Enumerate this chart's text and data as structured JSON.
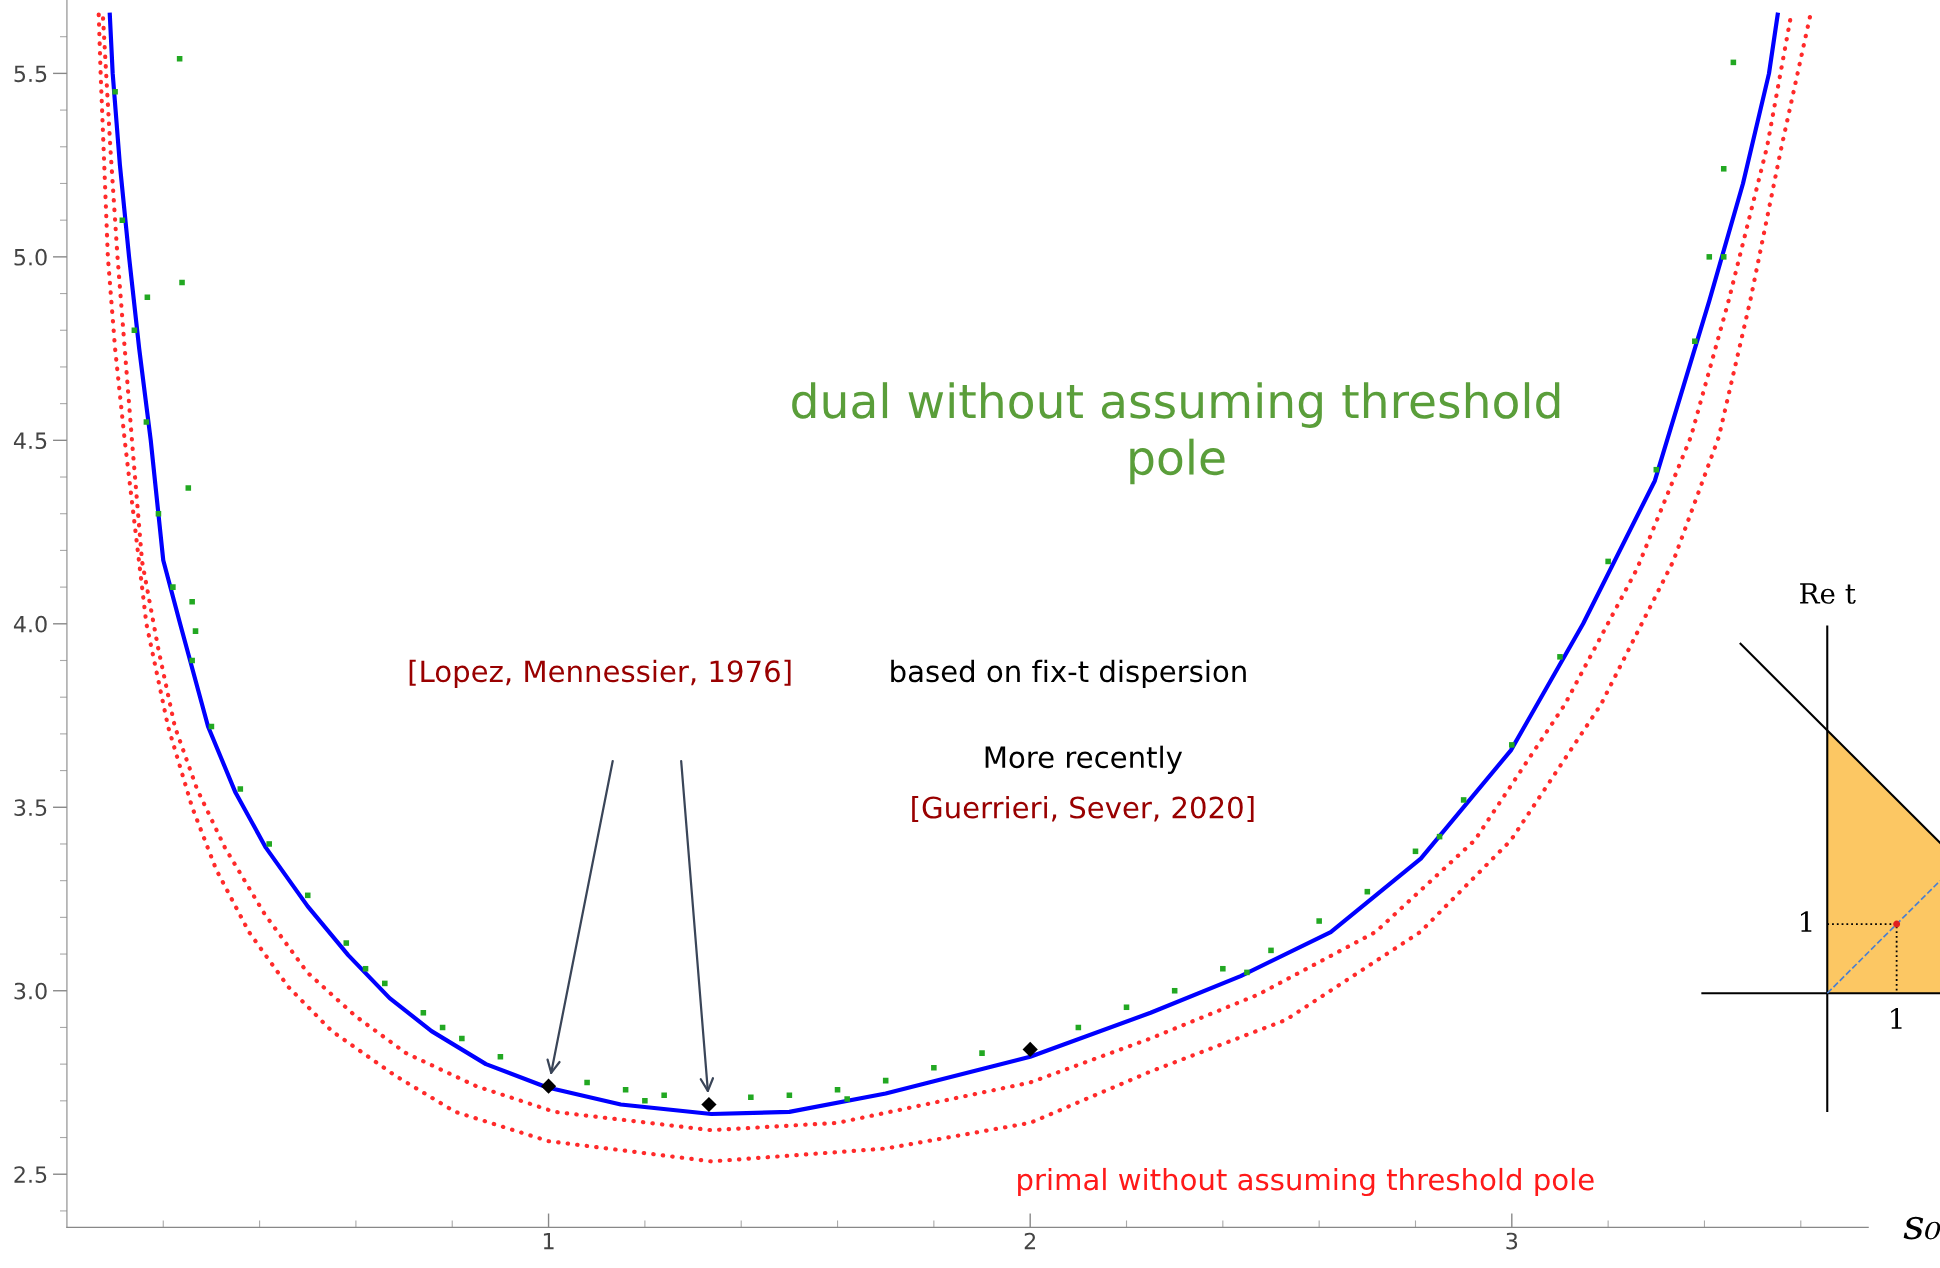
{
  "chart_data": {
    "type": "line",
    "xlabel": "s₀",
    "xlim": [
      0,
      3.74
    ],
    "ylim": [
      2.355,
      5.7
    ],
    "xticks": [
      {
        "value": 0.2,
        "label": null
      },
      {
        "value": 0.4,
        "label": null
      },
      {
        "value": 0.6,
        "label": null
      },
      {
        "value": 0.8,
        "label": null
      },
      1,
      {
        "value": 1.2,
        "label": null
      },
      {
        "value": 1.4,
        "label": null
      },
      {
        "value": 1.6,
        "label": null
      },
      {
        "value": 1.8,
        "label": null
      },
      2,
      {
        "value": 2.2,
        "label": null
      },
      {
        "value": 2.4,
        "label": null
      },
      {
        "value": 2.6,
        "label": null
      },
      {
        "value": 2.8,
        "label": null
      },
      3,
      {
        "value": 3.2,
        "label": null
      },
      {
        "value": 3.4,
        "label": null
      },
      {
        "value": 3.6,
        "label": null
      }
    ],
    "yticks": [
      {
        "value": 2.4,
        "label": null
      },
      2.5,
      {
        "value": 2.6,
        "label": null
      },
      {
        "value": 2.7,
        "label": null
      },
      {
        "value": 2.8,
        "label": null
      },
      {
        "value": 2.9,
        "label": null
      },
      {
        "value": 3.0,
        "label": "3.0"
      },
      {
        "value": 3.1,
        "label": null
      },
      {
        "value": 3.2,
        "label": null
      },
      {
        "value": 3.3,
        "label": null
      },
      {
        "value": 3.4,
        "label": null
      },
      3.5,
      {
        "value": 3.6,
        "label": null
      },
      {
        "value": 3.7,
        "label": null
      },
      {
        "value": 3.8,
        "label": null
      },
      {
        "value": 3.9,
        "label": null
      },
      {
        "value": 4.0,
        "label": "4.0"
      },
      {
        "value": 4.1,
        "label": null
      },
      {
        "value": 4.2,
        "label": null
      },
      {
        "value": 4.3,
        "label": null
      },
      {
        "value": 4.4,
        "label": null
      },
      4.5,
      {
        "value": 4.6,
        "label": null
      },
      {
        "value": 4.7,
        "label": null
      },
      {
        "value": 4.8,
        "label": null
      },
      {
        "value": 4.9,
        "label": null
      },
      {
        "value": 5.0,
        "label": "5.0"
      },
      {
        "value": 5.1,
        "label": null
      },
      {
        "value": 5.2,
        "label": null
      },
      {
        "value": 5.3,
        "label": null
      },
      {
        "value": 5.4,
        "label": null
      },
      5.5,
      {
        "value": 5.6,
        "label": null
      }
    ],
    "grid": false,
    "legend": false,
    "series": [
      {
        "type": "line",
        "line_style": "dotted",
        "color": "#ff2a2a",
        "x": [
          0.066,
          0.07,
          0.085,
          0.1,
          0.12,
          0.165,
          0.21,
          0.26,
          0.31,
          0.378,
          0.46,
          0.55,
          0.68,
          0.806,
          1.0,
          1.338,
          1.7,
          2.0,
          2.25,
          2.53,
          2.81,
          2.998,
          3.185,
          3.335,
          3.43,
          3.495,
          3.56,
          3.62
        ],
        "values": [
          5.66,
          5.5,
          5.0,
          4.75,
          4.5,
          4.0,
          3.72,
          3.5,
          3.33,
          3.16,
          3.01,
          2.89,
          2.77,
          2.67,
          2.59,
          2.535,
          2.57,
          2.64,
          2.78,
          2.92,
          3.16,
          3.41,
          3.78,
          4.17,
          4.51,
          4.88,
          5.3,
          5.66
        ]
      },
      {
        "type": "line",
        "line_style": "dotted",
        "color": "#ff2a2a",
        "x": [
          0.075,
          0.09,
          0.105,
          0.12,
          0.135,
          0.156,
          0.19,
          0.224,
          0.27,
          0.328,
          0.41,
          0.499,
          0.6,
          0.704,
          0.85,
          1.012,
          1.338,
          1.6,
          2.0,
          2.25,
          2.474,
          2.717,
          2.923,
          3.11,
          3.26,
          3.372,
          3.45,
          3.53,
          3.58
        ],
        "values": [
          5.65,
          5.3,
          5.0,
          4.75,
          4.5,
          4.17,
          3.93,
          3.72,
          3.55,
          3.39,
          3.21,
          3.05,
          2.93,
          2.83,
          2.74,
          2.67,
          2.62,
          2.64,
          2.75,
          2.87,
          2.99,
          3.16,
          3.41,
          3.78,
          4.15,
          4.51,
          4.88,
          5.3,
          5.66
        ]
      },
      {
        "type": "scatter",
        "color": "#22a822",
        "marker": "square",
        "x": [
          0.1,
          0.115,
          0.14,
          0.165,
          0.19,
          0.22,
          0.26,
          0.3,
          0.36,
          0.42,
          0.5,
          0.58,
          0.66,
          0.74,
          0.82,
          0.9,
          1.08,
          1.16,
          1.24,
          1.42,
          1.5,
          1.6,
          1.7,
          1.8,
          1.9,
          2.1,
          2.2,
          2.3,
          2.4,
          2.5,
          2.6,
          2.7,
          2.8,
          2.9,
          3.0,
          3.1,
          3.2,
          3.3,
          3.38,
          3.44,
          0.62,
          0.78,
          1.2,
          1.62,
          2.45,
          2.85,
          0.234,
          0.239,
          0.252,
          0.267,
          0.167,
          0.26,
          3.46,
          3.44,
          3.41
        ],
        "values": [
          5.45,
          5.1,
          4.8,
          4.55,
          4.3,
          4.1,
          3.9,
          3.72,
          3.55,
          3.4,
          3.26,
          3.13,
          3.02,
          2.94,
          2.87,
          2.82,
          2.75,
          2.73,
          2.715,
          2.71,
          2.715,
          2.73,
          2.755,
          2.79,
          2.83,
          2.9,
          2.955,
          3.0,
          3.06,
          3.11,
          3.19,
          3.27,
          3.38,
          3.52,
          3.67,
          3.91,
          4.17,
          4.42,
          4.77,
          5.0,
          3.06,
          2.9,
          2.7,
          2.705,
          3.05,
          3.42,
          5.54,
          4.93,
          4.37,
          3.98,
          4.89,
          4.06,
          5.53,
          5.24,
          5.0
        ]
      },
      {
        "color": "#0000ff",
        "line_style": "solid",
        "x": [
          0.089,
          0.095,
          0.11,
          0.129,
          0.15,
          0.174,
          0.2,
          0.235,
          0.293,
          0.35,
          0.413,
          0.5,
          0.584,
          0.67,
          0.757,
          0.87,
          0.996,
          1.15,
          1.338,
          1.5,
          1.7,
          2.0,
          2.25,
          2.437,
          2.624,
          2.811,
          2.998,
          3.148,
          3.297,
          3.41,
          3.48,
          3.534,
          3.552
        ],
        "values": [
          5.66,
          5.5,
          5.25,
          5.0,
          4.75,
          4.5,
          4.173,
          4.0,
          3.72,
          3.54,
          3.39,
          3.23,
          3.097,
          2.98,
          2.89,
          2.8,
          2.737,
          2.69,
          2.664,
          2.67,
          2.72,
          2.82,
          2.94,
          3.04,
          3.16,
          3.36,
          3.655,
          4.0,
          4.39,
          4.88,
          5.2,
          5.5,
          5.66
        ]
      },
      {
        "type": "scatter",
        "color": "#000000",
        "marker": "diamond",
        "x": [
          1.0,
          1.333,
          2.0
        ],
        "values": [
          2.74,
          2.69,
          2.84
        ]
      }
    ],
    "annotations": [
      "dual without assuming threshold pole",
      "[Lopez, Mennessier, 1976]",
      "based on fix-t dispersion",
      "More recently",
      "[Guerrieri, Sever, 2020]",
      "primal without assuming threshold pole",
      "Re t",
      "1",
      "1"
    ]
  }
}
